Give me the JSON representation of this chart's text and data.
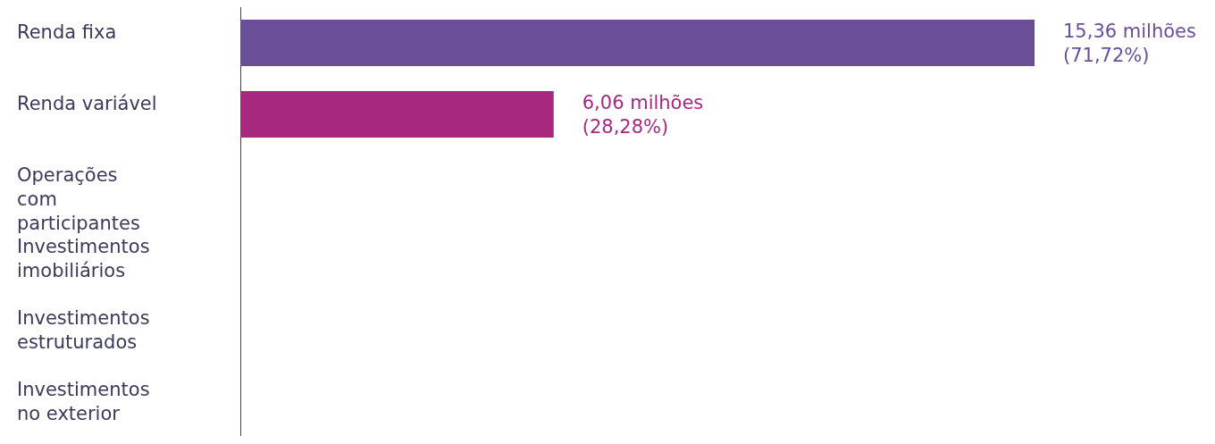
{
  "chart_data": {
    "type": "bar",
    "orientation": "horizontal",
    "categories": [
      "Renda fixa",
      "Renda variável",
      "Operações com participantes",
      "Investimentos imobiliários",
      "Investimentos estruturados",
      "Investimentos no exterior"
    ],
    "values": [
      15.36,
      6.06,
      0,
      0,
      0,
      0
    ],
    "colors": [
      "#6a4f98",
      "#a8287f",
      "#5a3f6a",
      "#2f6f88",
      "#c43a3a",
      "#1f6fa3"
    ],
    "value_labels": [
      "15,36 milhões\n(71,72%)",
      "6,06 milhões\n(28,28%)",
      null,
      null,
      null,
      null
    ]
  }
}
